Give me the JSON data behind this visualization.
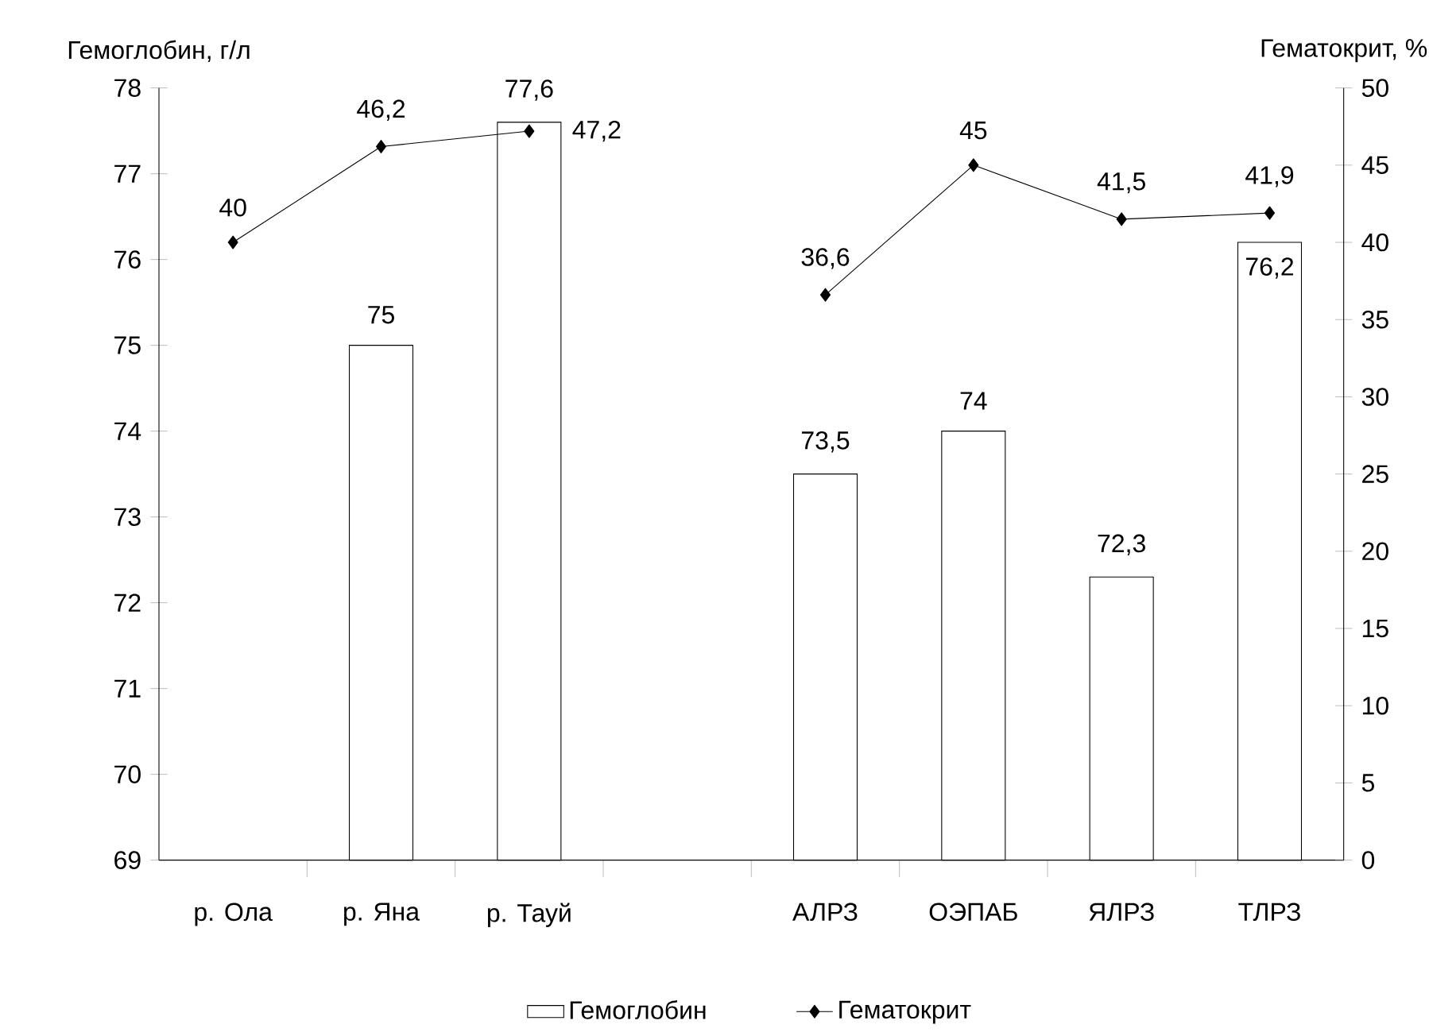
{
  "chart_data": {
    "type": "bar",
    "ylabel": "Гемоглобин, г/л",
    "y2label": "Гематокрит, %",
    "categories": [
      "р. Ола",
      "р. Яна",
      "р. Тауй",
      null,
      "АЛРЗ",
      "ОЭПАБ",
      "ЯЛРЗ",
      "ТЛРЗ"
    ],
    "ylim": [
      69,
      78
    ],
    "yticks": [
      69,
      70,
      71,
      72,
      73,
      74,
      75,
      76,
      77,
      78
    ],
    "y2lim": [
      0,
      50
    ],
    "y2ticks": [
      0,
      5,
      10,
      15,
      20,
      25,
      30,
      35,
      40,
      45,
      50
    ],
    "legend": "bottom",
    "marker": "diamond",
    "line_style": "solid",
    "series": [
      {
        "name": "Гемоглобин",
        "color": "#ffffff",
        "values": [
          null,
          75,
          77.6,
          null,
          73.5,
          74,
          72.3,
          76.2
        ],
        "value_labels": [
          null,
          "75",
          "77,6",
          null,
          "73,5",
          "74",
          "72,3",
          "76,2"
        ]
      },
      {
        "name": "Гематокрит",
        "type": "line",
        "axis": "y2",
        "color": "#000000",
        "values": [
          40,
          46.2,
          47.2,
          null,
          36.6,
          45,
          41.5,
          41.9
        ],
        "value_labels": [
          "40",
          "46,2",
          "47,2",
          null,
          "36,6",
          "45",
          "41,5",
          "41,9"
        ]
      }
    ]
  }
}
